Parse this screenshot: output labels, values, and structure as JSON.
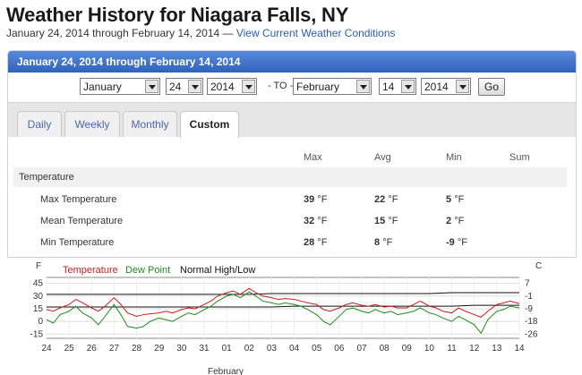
{
  "page": {
    "title": "Weather History for Niagara Falls, NY",
    "subtitle_range": "January 24, 2014 through February 14, 2014 —",
    "subtitle_link": "View Current Weather Conditions"
  },
  "panel": {
    "header": "January 24, 2014 through February 14, 2014",
    "selectors": {
      "from_month": "January",
      "from_day": "24",
      "from_year": "2014",
      "to_label": "- TO -",
      "to_month": "February",
      "to_day": "14",
      "to_year": "2014",
      "go_label": "Go"
    },
    "tabs": [
      {
        "label": "Daily"
      },
      {
        "label": "Weekly"
      },
      {
        "label": "Monthly"
      },
      {
        "label": "Custom"
      }
    ]
  },
  "table": {
    "headers": [
      "Max",
      "Avg",
      "Min",
      "Sum"
    ],
    "section": "Temperature",
    "unit": "°F",
    "rows": [
      {
        "label": "Max Temperature",
        "max": "39",
        "avg": "22",
        "min": "5"
      },
      {
        "label": "Mean Temperature",
        "max": "32",
        "avg": "15",
        "min": "2"
      },
      {
        "label": "Min Temperature",
        "max": "28",
        "avg": "8",
        "min": "-9"
      }
    ]
  },
  "chart_data": {
    "type": "line",
    "left_axis_label": "F",
    "right_axis_label": "C",
    "legend": [
      {
        "name": "Temperature",
        "color": "#c81e1e"
      },
      {
        "name": "Dew Point",
        "color": "#1e8c1e"
      },
      {
        "name": "Normal High/Low",
        "color": "#111111"
      }
    ],
    "yticks_f": [
      45,
      30,
      15,
      0,
      -15
    ],
    "yticks_c": [
      "7",
      "-1",
      "-9",
      "-18",
      "-26"
    ],
    "ylim_f": [
      -20,
      52
    ],
    "xticks": [
      "24",
      "25",
      "26",
      "27",
      "28",
      "29",
      "30",
      "31",
      "01",
      "02",
      "03",
      "04",
      "05",
      "06",
      "07",
      "08",
      "09",
      "10",
      "11",
      "12",
      "13",
      "14"
    ],
    "xlabel": "February",
    "normal_high": [
      32,
      32,
      32,
      32,
      32,
      32,
      32,
      32,
      32,
      32,
      33,
      33,
      33,
      33,
      33,
      33,
      33,
      33,
      34,
      34,
      34,
      34
    ],
    "normal_low": [
      17,
      17,
      17,
      17,
      17,
      17,
      17,
      17,
      17,
      17,
      17,
      18,
      18,
      18,
      18,
      18,
      18,
      18,
      18,
      19,
      19,
      19
    ],
    "series": [
      {
        "name": "Temperature",
        "x": [
          24,
          24.3,
          24.6,
          25,
          25.3,
          25.6,
          26,
          26.3,
          26.6,
          27,
          27.3,
          27.6,
          28,
          28.3,
          28.6,
          29,
          29.3,
          29.6,
          30,
          30.3,
          30.6,
          31,
          31.3,
          31.6,
          32,
          32.3,
          32.6,
          33,
          33.3,
          33.6,
          34,
          34.3,
          34.6,
          35,
          35.3,
          35.6,
          36,
          36.3,
          36.6,
          37,
          37.3,
          37.6,
          38,
          38.3,
          38.6,
          39,
          39.3,
          39.6,
          40,
          40.3,
          40.6,
          41,
          41.3,
          41.6,
          42,
          42.3,
          42.6,
          43,
          43.3,
          43.6,
          44,
          44.3,
          44.6,
          45
        ],
        "values": [
          14,
          12,
          16,
          20,
          26,
          22,
          16,
          12,
          18,
          28,
          20,
          10,
          6,
          8,
          9,
          10,
          12,
          10,
          14,
          16,
          15,
          20,
          24,
          30,
          34,
          36,
          32,
          39,
          34,
          30,
          28,
          26,
          27,
          26,
          24,
          22,
          20,
          14,
          12,
          16,
          20,
          22,
          19,
          18,
          20,
          17,
          18,
          16,
          16,
          20,
          24,
          18,
          16,
          12,
          10,
          16,
          12,
          8,
          5,
          12,
          20,
          22,
          24,
          21
        ]
      },
      {
        "name": "Dew Point",
        "x": [
          24,
          24.3,
          24.6,
          25,
          25.3,
          25.6,
          26,
          26.3,
          26.6,
          27,
          27.3,
          27.6,
          28,
          28.3,
          28.6,
          29,
          29.3,
          29.6,
          30,
          30.3,
          30.6,
          31,
          31.3,
          31.6,
          32,
          32.3,
          32.6,
          33,
          33.3,
          33.6,
          34,
          34.3,
          34.6,
          35,
          35.3,
          35.6,
          36,
          36.3,
          36.6,
          37,
          37.3,
          37.6,
          38,
          38.3,
          38.6,
          39,
          39.3,
          39.6,
          40,
          40.3,
          40.6,
          41,
          41.3,
          41.6,
          42,
          42.3,
          42.6,
          43,
          43.3,
          43.6,
          44,
          44.3,
          44.6,
          45
        ],
        "values": [
          2,
          -2,
          8,
          12,
          18,
          10,
          4,
          -4,
          6,
          20,
          8,
          -6,
          -8,
          -6,
          0,
          4,
          2,
          0,
          6,
          10,
          8,
          14,
          18,
          24,
          30,
          32,
          28,
          35,
          30,
          24,
          22,
          20,
          22,
          20,
          18,
          14,
          8,
          0,
          -4,
          6,
          14,
          16,
          12,
          10,
          14,
          10,
          12,
          8,
          10,
          12,
          16,
          10,
          8,
          4,
          0,
          6,
          2,
          -4,
          -14,
          2,
          12,
          14,
          18,
          16
        ]
      }
    ]
  }
}
